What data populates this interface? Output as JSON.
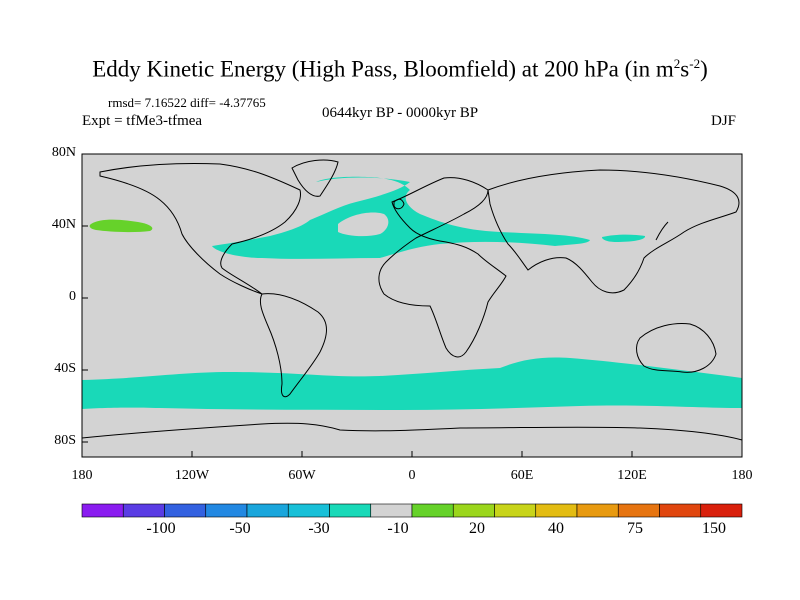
{
  "title": {
    "main": "Eddy Kinetic Energy (High Pass, Bloomfield) at 200 hPa (in m",
    "sup1": "2",
    "mid": "s",
    "sup2": "-2",
    "end": ")"
  },
  "stats": "rmsd= 7.16522 diff= -4.37765",
  "expt": "Expt = tfMe3-tfmea",
  "period": "0644kyr BP - 0000kyr BP",
  "season": "DJF",
  "map": {
    "lat_ticks": [
      "80N",
      "40N",
      "0",
      "40S",
      "80S"
    ],
    "lon_ticks": [
      "180",
      "120W",
      "60W",
      "0",
      "60E",
      "120E",
      "180"
    ],
    "background_color": "#d3d3d3",
    "regions": [
      {
        "name": "southern-ocean-band",
        "color": "#19d9b8",
        "value_range": [
          -10,
          -20
        ]
      },
      {
        "name": "north-atlantic-band",
        "color": "#19d9b8",
        "value_range": [
          -10,
          -20
        ]
      },
      {
        "name": "north-pacific-patch",
        "color": "#66d22a",
        "value_range": [
          10,
          20
        ]
      }
    ]
  },
  "colorbar": {
    "labels": [
      "-100",
      "-50",
      "-30",
      "-10",
      "20",
      "40",
      "75",
      "150"
    ],
    "colors": [
      "#8a1cf0",
      "#5a3ce4",
      "#3361e0",
      "#2288e2",
      "#1aa6dc",
      "#18c0d8",
      "#19d9b8",
      "#d3d3d3",
      "#66d22a",
      "#9bd61c",
      "#c8d41a",
      "#e3bc12",
      "#e89a10",
      "#e67410",
      "#e0460e",
      "#d9200c"
    ]
  }
}
